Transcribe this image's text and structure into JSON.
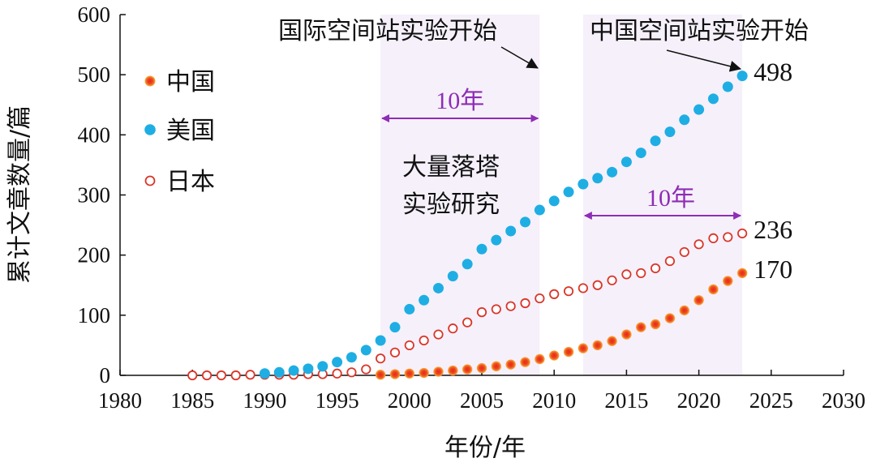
{
  "chart_data": {
    "type": "scatter",
    "xlabel": "年份/年",
    "ylabel": "累计文章数量/篇",
    "xlim": [
      1980,
      2030
    ],
    "ylim": [
      0,
      600
    ],
    "xticks": [
      1980,
      1985,
      1990,
      1995,
      2000,
      2005,
      2010,
      2015,
      2020,
      2025,
      2030
    ],
    "yticks": [
      0,
      100,
      200,
      300,
      400,
      500,
      600
    ],
    "legend": {
      "position": "top-left"
    },
    "series": [
      {
        "name": "中国",
        "marker": "filled-orange",
        "color": "#e8321e",
        "x": [
          1998,
          1999,
          2000,
          2001,
          2002,
          2003,
          2004,
          2005,
          2006,
          2007,
          2008,
          2009,
          2010,
          2011,
          2012,
          2013,
          2014,
          2015,
          2016,
          2017,
          2018,
          2019,
          2020,
          2021,
          2022,
          2023
        ],
        "y": [
          1,
          2,
          3,
          4,
          6,
          8,
          10,
          12,
          15,
          18,
          22,
          27,
          33,
          39,
          45,
          50,
          57,
          68,
          80,
          85,
          95,
          108,
          125,
          143,
          157,
          170
        ]
      },
      {
        "name": "美国",
        "marker": "filled-blue",
        "color": "#1eaee3",
        "x": [
          1990,
          1991,
          1992,
          1993,
          1994,
          1995,
          1996,
          1997,
          1998,
          1999,
          2000,
          2001,
          2002,
          2003,
          2004,
          2005,
          2006,
          2007,
          2008,
          2009,
          2010,
          2011,
          2012,
          2013,
          2014,
          2015,
          2016,
          2017,
          2018,
          2019,
          2020,
          2021,
          2022,
          2023
        ],
        "y": [
          3,
          5,
          8,
          11,
          15,
          22,
          30,
          42,
          58,
          80,
          110,
          125,
          145,
          165,
          185,
          210,
          225,
          240,
          255,
          275,
          290,
          305,
          318,
          328,
          338,
          355,
          370,
          390,
          405,
          425,
          442,
          460,
          480,
          498
        ]
      },
      {
        "name": "日本",
        "marker": "hollow-red",
        "color": "#d9362a",
        "x": [
          1985,
          1986,
          1987,
          1988,
          1989,
          1990,
          1991,
          1992,
          1993,
          1994,
          1995,
          1996,
          1997,
          1998,
          1999,
          2000,
          2001,
          2002,
          2003,
          2004,
          2005,
          2006,
          2007,
          2008,
          2009,
          2010,
          2011,
          2012,
          2013,
          2014,
          2015,
          2016,
          2017,
          2018,
          2019,
          2020,
          2021,
          2022,
          2023
        ],
        "y": [
          0,
          0,
          0,
          0,
          1,
          1,
          1,
          1,
          2,
          2,
          3,
          5,
          10,
          28,
          38,
          50,
          58,
          68,
          78,
          88,
          105,
          110,
          115,
          120,
          128,
          135,
          140,
          145,
          150,
          158,
          168,
          170,
          178,
          190,
          205,
          218,
          228,
          230,
          236
        ]
      }
    ],
    "shaded_regions": [
      {
        "from": 1998,
        "to": 2009,
        "color": "#f6f0fa"
      },
      {
        "from": 2012,
        "to": 2023,
        "color": "#f6f0fa"
      }
    ],
    "annotations": {
      "iss_start": "国际空间站实验开始",
      "css_start": "中国空间站实验开始",
      "drop_tower": [
        "大量落塔",
        "实验研究"
      ],
      "span1": "10年",
      "span2": "10年",
      "end_labels": [
        {
          "series": "美国",
          "text": "498"
        },
        {
          "series": "日本",
          "text": "236"
        },
        {
          "series": "中国",
          "text": "170"
        }
      ]
    },
    "colors": {
      "span_arrow": "#8e2db5"
    }
  }
}
